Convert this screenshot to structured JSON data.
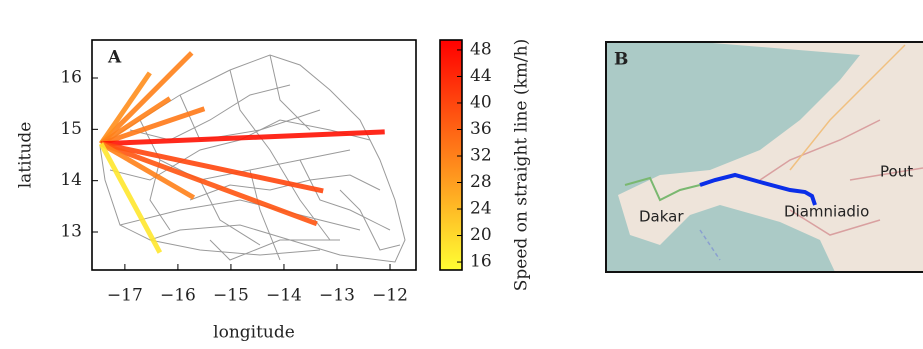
{
  "chart_data": {
    "type": "segments",
    "panel_label": "A",
    "x_label": "longitude",
    "y_label": "latitude",
    "origin": {
      "x": -17.45,
      "y": 14.72
    },
    "x": [
      -15.74,
      -16.53,
      -16.15,
      -15.5,
      -12.1,
      -13.26,
      -13.38,
      -15.7,
      -16.34
    ],
    "y": [
      16.49,
      16.1,
      15.6,
      15.4,
      14.95,
      13.8,
      13.16,
      13.67,
      12.6
    ],
    "speed": [
      32,
      30,
      32,
      33,
      47,
      40,
      38,
      32,
      18
    ],
    "xlim": [
      -17.62,
      -11.51
    ],
    "ylim": [
      12.26,
      16.74
    ],
    "xticks": [
      {
        "value": -17,
        "label": "−17"
      },
      {
        "value": -16,
        "label": "−16"
      },
      {
        "value": -15,
        "label": "−15"
      },
      {
        "value": -14,
        "label": "−14"
      },
      {
        "value": -13,
        "label": "−13"
      },
      {
        "value": -12,
        "label": "−12"
      }
    ],
    "yticks": [
      13,
      14,
      15,
      16
    ],
    "colorbar": {
      "label": "Speed on straight line (km/h)",
      "clim": [
        14.8,
        49.5
      ],
      "ticks": [
        16,
        20,
        24,
        28,
        32,
        36,
        40,
        44,
        48
      ],
      "colormap": [
        "#ffff33",
        "#ff0000"
      ]
    }
  },
  "map": {
    "panel_label": "B",
    "places": [
      "Dakar",
      "Diamniadio",
      "Pout"
    ]
  }
}
